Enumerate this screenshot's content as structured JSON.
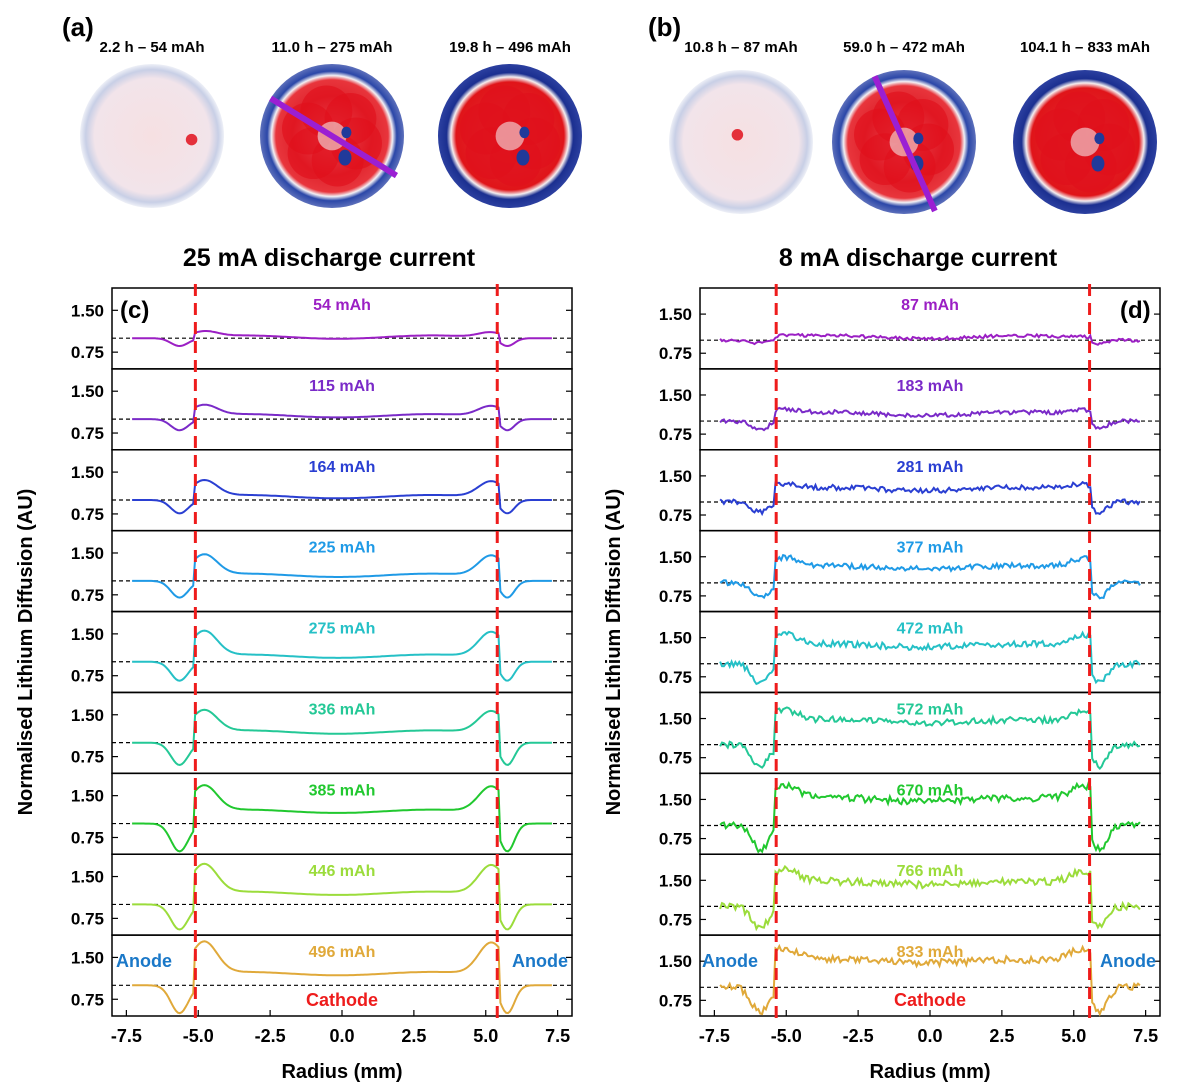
{
  "panel_a": {
    "label": "(a)",
    "title": "25 mA discharge current",
    "images": [
      {
        "caption": "2.2 h – 54 mAh",
        "fill_level": 0.1,
        "ring_level": 0.25,
        "has_line": false
      },
      {
        "caption": "11.0 h – 275 mAh",
        "fill_level": 0.75,
        "ring_level": 0.9,
        "has_line": true
      },
      {
        "caption": "19.8 h – 496 mAh",
        "fill_level": 0.95,
        "ring_level": 1.0,
        "has_line": false
      }
    ]
  },
  "panel_b": {
    "label": "(b)",
    "title": "8 mA discharge current",
    "images": [
      {
        "caption": "10.8 h – 87 mAh",
        "fill_level": 0.1,
        "ring_level": 0.2,
        "has_line": false
      },
      {
        "caption": "59.0 h – 472 mAh",
        "fill_level": 0.75,
        "ring_level": 0.5,
        "has_line": true
      },
      {
        "caption": "104.1 h – 833 mAh",
        "fill_level": 0.95,
        "ring_level": 1.0,
        "has_line": false
      }
    ]
  },
  "colors": {
    "map_red": "#e0101c",
    "map_blue": "#203a9a",
    "cut_line": "#9b1fd3",
    "boundary": "#ee1c1c",
    "anode_text": "#1a78c8",
    "cathode_text": "#ee1c1c",
    "reference_line": "#000000"
  },
  "chart_data": [
    {
      "type": "line",
      "panel_label": "(c)",
      "xlabel": "Radius (mm)",
      "ylabel": "Normalised Lithium Diffusion (AU)",
      "xlim": [
        -8.0,
        8.0
      ],
      "xticks": [
        "-7.5",
        "-5.0",
        "-2.5",
        "0.0",
        "2.5",
        "5.0",
        "7.5"
      ],
      "yticks": [
        "0.75",
        "1.50"
      ],
      "ylim": [
        0.45,
        1.9
      ],
      "reference_y": 1.0,
      "boundaries_x": [
        -5.1,
        5.4
      ],
      "anode_label": "Anode",
      "cathode_label": "Cathode",
      "series": [
        {
          "name": "54 mAh",
          "color": "#9b1fc4",
          "center_level": 1.02,
          "edge_peak": 1.12,
          "dip_depth": 0.86,
          "noise": 0.0
        },
        {
          "name": "115 mAh",
          "color": "#7a2ac8",
          "center_level": 1.06,
          "edge_peak": 1.25,
          "dip_depth": 0.8,
          "noise": 0.0
        },
        {
          "name": "164 mAh",
          "color": "#2a3fd2",
          "center_level": 1.06,
          "edge_peak": 1.35,
          "dip_depth": 0.76,
          "noise": 0.0
        },
        {
          "name": "225 mAh",
          "color": "#1f9ae6",
          "center_level": 1.1,
          "edge_peak": 1.47,
          "dip_depth": 0.7,
          "noise": 0.0
        },
        {
          "name": "275 mAh",
          "color": "#25c0c6",
          "center_level": 1.1,
          "edge_peak": 1.55,
          "dip_depth": 0.66,
          "noise": 0.0
        },
        {
          "name": "336 mAh",
          "color": "#24c896",
          "center_level": 1.19,
          "edge_peak": 1.58,
          "dip_depth": 0.6,
          "noise": 0.0
        },
        {
          "name": "385 mAh",
          "color": "#21c82f",
          "center_level": 1.22,
          "edge_peak": 1.68,
          "dip_depth": 0.5,
          "noise": 0.0
        },
        {
          "name": "446 mAh",
          "color": "#9bdc3b",
          "center_level": 1.2,
          "edge_peak": 1.72,
          "dip_depth": 0.55,
          "noise": 0.0
        },
        {
          "name": "496 mAh",
          "color": "#e0a93a",
          "center_level": 1.21,
          "edge_peak": 1.78,
          "dip_depth": 0.5,
          "noise": 0.0
        }
      ]
    },
    {
      "type": "line",
      "panel_label": "(d)",
      "xlabel": "Radius (mm)",
      "ylabel": "Normalised Lithium Diffusion (AU)",
      "xlim": [
        -8.0,
        8.0
      ],
      "xticks": [
        "-7.5",
        "-5.0",
        "-2.5",
        "0.0",
        "2.5",
        "5.0",
        "7.5"
      ],
      "yticks": [
        "0.75",
        "1.50"
      ],
      "ylim": [
        0.45,
        2.0
      ],
      "reference_y": 1.0,
      "boundaries_x": [
        -5.35,
        5.55
      ],
      "anode_label": "Anode",
      "cathode_label": "Cathode",
      "series": [
        {
          "name": "87 mAh",
          "color": "#9b1fc4",
          "center_level": 1.06,
          "edge_peak": 1.08,
          "dip_depth": 0.94,
          "noise": 0.03
        },
        {
          "name": "183 mAh",
          "color": "#7a2ac8",
          "center_level": 1.14,
          "edge_peak": 1.22,
          "dip_depth": 0.85,
          "noise": 0.04
        },
        {
          "name": "281 mAh",
          "color": "#2a3fd2",
          "center_level": 1.25,
          "edge_peak": 1.35,
          "dip_depth": 0.8,
          "noise": 0.05
        },
        {
          "name": "377 mAh",
          "color": "#1f9ae6",
          "center_level": 1.3,
          "edge_peak": 1.48,
          "dip_depth": 0.72,
          "noise": 0.05
        },
        {
          "name": "472 mAh",
          "color": "#25c0c6",
          "center_level": 1.35,
          "edge_peak": 1.55,
          "dip_depth": 0.62,
          "noise": 0.06
        },
        {
          "name": "572 mAh",
          "color": "#24c896",
          "center_level": 1.45,
          "edge_peak": 1.65,
          "dip_depth": 0.6,
          "noise": 0.06
        },
        {
          "name": "670 mAh",
          "color": "#21c82f",
          "center_level": 1.5,
          "edge_peak": 1.78,
          "dip_depth": 0.55,
          "noise": 0.07
        },
        {
          "name": "766 mAh",
          "color": "#9bdc3b",
          "center_level": 1.45,
          "edge_peak": 1.7,
          "dip_depth": 0.6,
          "noise": 0.07
        },
        {
          "name": "833 mAh",
          "color": "#e0a93a",
          "center_level": 1.5,
          "edge_peak": 1.75,
          "dip_depth": 0.52,
          "noise": 0.07
        }
      ]
    }
  ]
}
